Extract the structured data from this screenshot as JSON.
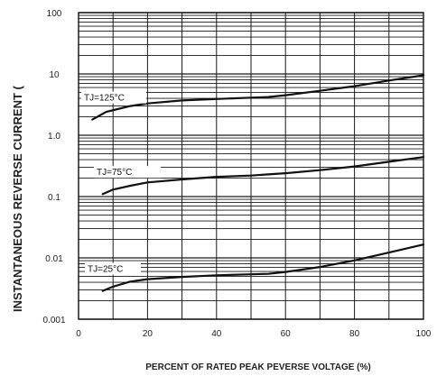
{
  "chart_data": {
    "type": "line",
    "title": "",
    "xlabel": "PERCENT OF RATED PEAK PEVERSE VOLTAGE (%)",
    "ylabel": "INSTANTANEOUS REVERSE CURRENT (",
    "xlim": [
      0,
      100
    ],
    "ylim": [
      0.001,
      100
    ],
    "yscale": "log",
    "grid": true,
    "x_ticks": [
      "0",
      "20",
      "40",
      "60",
      "80",
      "100"
    ],
    "y_ticks": [
      "0.001",
      "0.01",
      "0.1",
      "1.0",
      "10",
      "100"
    ],
    "series": [
      {
        "name": "TJ=125°C",
        "x": [
          4,
          8,
          15,
          20,
          30,
          40,
          50,
          55,
          60,
          70,
          80,
          90,
          100
        ],
        "y": [
          1.8,
          2.4,
          3.0,
          3.3,
          3.7,
          3.9,
          4.1,
          4.2,
          4.5,
          5.3,
          6.3,
          7.8,
          9.5
        ]
      },
      {
        "name": "TJ=75°C",
        "x": [
          7,
          10,
          15,
          20,
          30,
          40,
          50,
          55,
          60,
          70,
          80,
          90,
          100
        ],
        "y": [
          0.11,
          0.13,
          0.15,
          0.17,
          0.19,
          0.21,
          0.22,
          0.23,
          0.24,
          0.27,
          0.31,
          0.37,
          0.44
        ]
      },
      {
        "name": "TJ=25°C",
        "x": [
          7,
          10,
          15,
          20,
          30,
          40,
          50,
          55,
          60,
          70,
          80,
          90,
          100
        ],
        "y": [
          0.0029,
          0.0034,
          0.0041,
          0.0045,
          0.0049,
          0.0052,
          0.0054,
          0.0055,
          0.0059,
          0.0071,
          0.0091,
          0.0122,
          0.0165
        ]
      }
    ]
  }
}
